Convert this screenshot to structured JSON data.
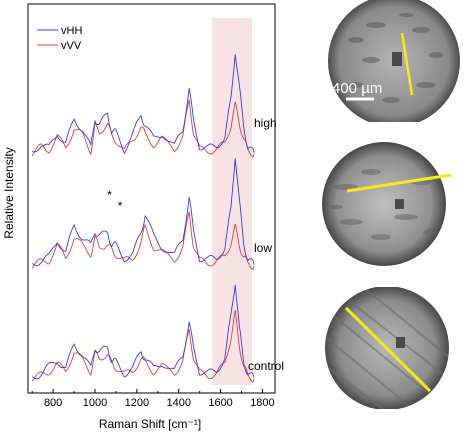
{
  "chart_data": {
    "type": "line",
    "xlabel": "Raman Shift [cm⁻¹]",
    "ylabel": "Relative Intensity",
    "xlim": [
      680,
      1860
    ],
    "x_ticks": [
      800,
      1000,
      1200,
      1400,
      1600,
      1800
    ],
    "highlight_band": [
      1560,
      1750
    ],
    "highlight_color": "#f7e3e3",
    "legend_position": "top-left",
    "series": [
      {
        "name": "vHH",
        "color": "#3b3bd9"
      },
      {
        "name": "vVV",
        "color": "#e03c3c"
      }
    ],
    "traces": [
      {
        "label": "high",
        "x": [
          700,
          740,
          780,
          820,
          860,
          900,
          940,
          980,
          1000,
          1020,
          1060,
          1080,
          1100,
          1140,
          1180,
          1220,
          1240,
          1280,
          1320,
          1380,
          1420,
          1450,
          1470,
          1500,
          1540,
          1580,
          1620,
          1650,
          1670,
          1690,
          1710,
          1730,
          1760
        ],
        "vHH": [
          0.02,
          0.1,
          0.06,
          0.2,
          0.1,
          0.32,
          0.24,
          0.06,
          0.34,
          0.26,
          0.38,
          0.22,
          0.2,
          0.05,
          0.18,
          0.36,
          0.28,
          0.14,
          0.2,
          0.08,
          0.22,
          0.62,
          0.3,
          0.08,
          0.06,
          0.08,
          0.16,
          0.5,
          0.95,
          0.6,
          0.28,
          0.06,
          0.02
        ],
        "vVV": [
          0.01,
          0.07,
          0.05,
          0.16,
          0.07,
          0.24,
          0.18,
          0.04,
          0.26,
          0.2,
          0.3,
          0.16,
          0.14,
          0.03,
          0.14,
          0.26,
          0.18,
          0.1,
          0.14,
          0.05,
          0.18,
          0.48,
          0.22,
          0.05,
          0.04,
          0.05,
          0.1,
          0.28,
          0.45,
          0.3,
          0.14,
          0.04,
          0.01
        ]
      },
      {
        "label": "low",
        "x": [
          700,
          740,
          780,
          820,
          860,
          900,
          940,
          980,
          1000,
          1020,
          1060,
          1080,
          1100,
          1140,
          1180,
          1220,
          1240,
          1280,
          1320,
          1380,
          1420,
          1450,
          1470,
          1500,
          1540,
          1580,
          1620,
          1650,
          1670,
          1690,
          1710,
          1730,
          1760
        ],
        "vHH": [
          0.02,
          0.06,
          0.08,
          0.24,
          0.12,
          0.36,
          0.26,
          0.18,
          0.32,
          0.26,
          0.3,
          0.2,
          0.18,
          0.08,
          0.1,
          0.3,
          0.46,
          0.26,
          0.18,
          0.1,
          0.24,
          0.62,
          0.3,
          0.08,
          0.06,
          0.08,
          0.16,
          0.5,
          0.98,
          0.56,
          0.22,
          0.06,
          0.02
        ],
        "vVV": [
          0.01,
          0.04,
          0.06,
          0.18,
          0.08,
          0.26,
          0.18,
          0.12,
          0.24,
          0.18,
          0.2,
          0.14,
          0.12,
          0.05,
          0.07,
          0.22,
          0.34,
          0.18,
          0.12,
          0.06,
          0.18,
          0.46,
          0.2,
          0.05,
          0.04,
          0.05,
          0.08,
          0.22,
          0.34,
          0.2,
          0.08,
          0.03,
          0.01
        ]
      },
      {
        "label": "control",
        "x": [
          700,
          740,
          780,
          820,
          860,
          900,
          940,
          980,
          1000,
          1020,
          1060,
          1080,
          1100,
          1140,
          1180,
          1220,
          1240,
          1280,
          1320,
          1380,
          1420,
          1450,
          1470,
          1500,
          1540,
          1580,
          1620,
          1650,
          1670,
          1690,
          1710,
          1730,
          1760
        ],
        "vHH": [
          0.02,
          0.06,
          0.12,
          0.18,
          0.1,
          0.32,
          0.24,
          0.1,
          0.3,
          0.24,
          0.3,
          0.18,
          0.16,
          0.06,
          0.1,
          0.26,
          0.2,
          0.1,
          0.16,
          0.08,
          0.22,
          0.54,
          0.28,
          0.08,
          0.06,
          0.08,
          0.2,
          0.58,
          0.9,
          0.46,
          0.18,
          0.05,
          0.02
        ],
        "vVV": [
          0.01,
          0.04,
          0.08,
          0.14,
          0.08,
          0.26,
          0.18,
          0.08,
          0.24,
          0.2,
          0.24,
          0.14,
          0.12,
          0.05,
          0.08,
          0.2,
          0.16,
          0.08,
          0.12,
          0.06,
          0.18,
          0.44,
          0.22,
          0.06,
          0.04,
          0.06,
          0.14,
          0.4,
          0.6,
          0.32,
          0.12,
          0.04,
          0.01
        ]
      }
    ],
    "annotations": [
      {
        "text": "*",
        "x": 1070
      },
      {
        "text": "*",
        "x": 1120
      }
    ]
  },
  "micrographs": [
    {
      "name": "high-sample-micrograph",
      "scale_label": "400 µm"
    },
    {
      "name": "low-sample-micrograph"
    },
    {
      "name": "control-sample-micrograph"
    }
  ],
  "colors": {
    "scan_line": "#f5ea1c",
    "scale_bar": "#ffffff"
  }
}
